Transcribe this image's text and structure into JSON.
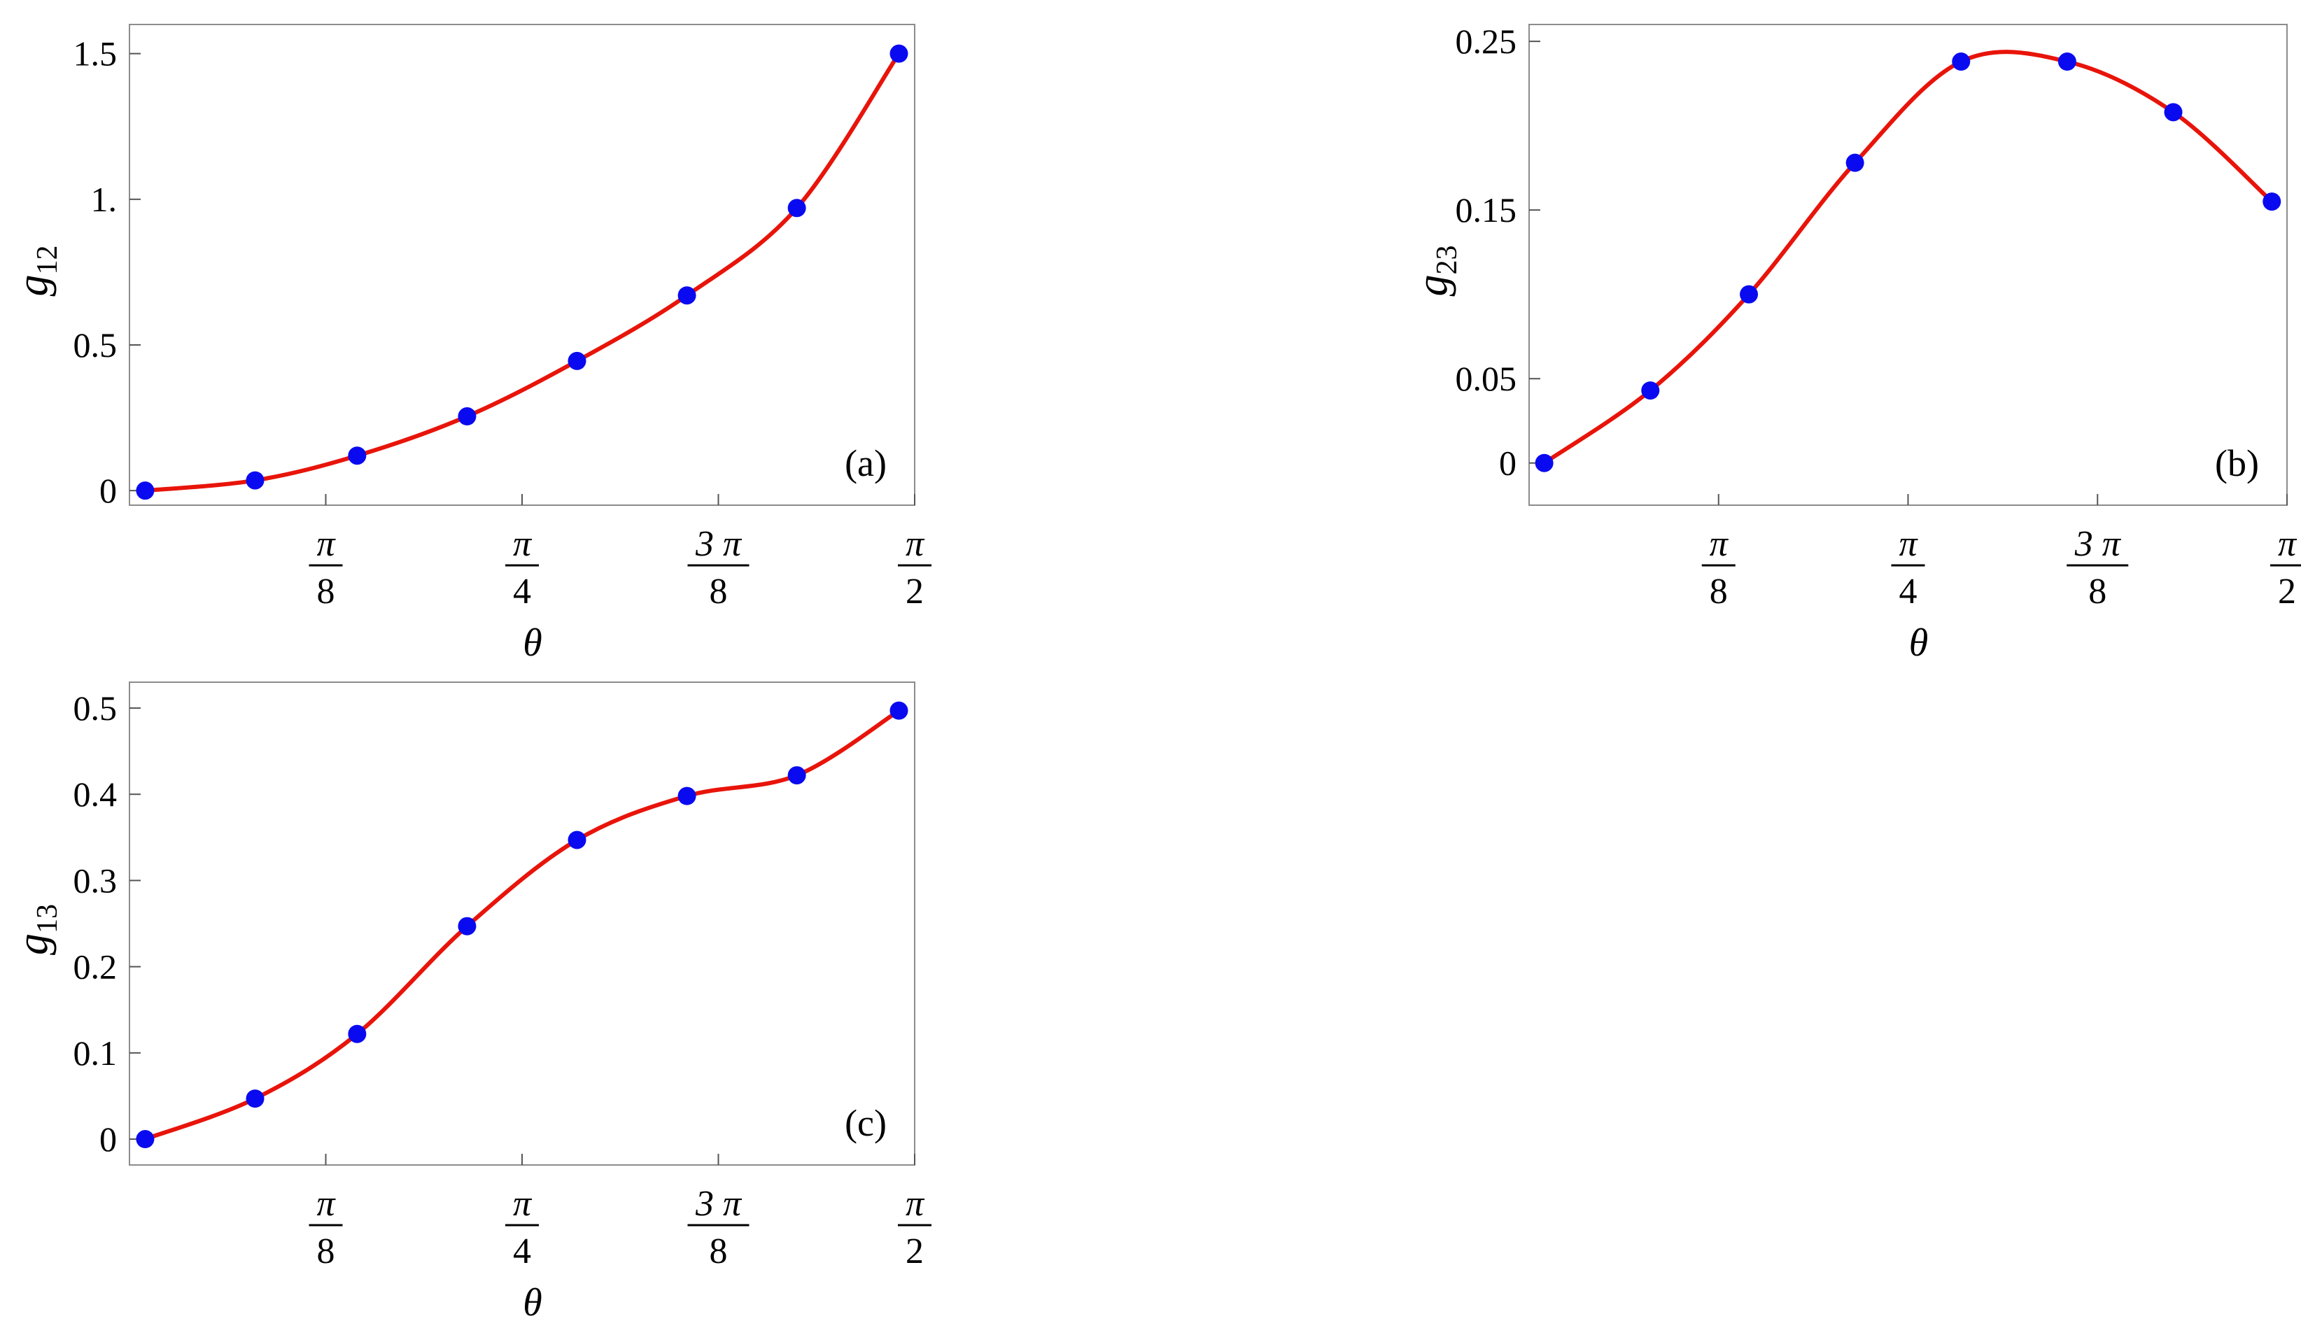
{
  "chart_data": [
    {
      "id": "a",
      "type": "scatter",
      "panel_label": "(a)",
      "xlabel": "θ",
      "ylabel": "g",
      "ylabel_sub": "12",
      "xlim": [
        0,
        1.5708
      ],
      "ylim": [
        -0.05,
        1.6
      ],
      "yticks": [
        {
          "value": 0,
          "label": "0"
        },
        {
          "value": 0.5,
          "label": "0.5"
        },
        {
          "value": 1,
          "label": "1."
        },
        {
          "value": 1.5,
          "label": "1.5"
        }
      ],
      "xticks": [
        {
          "value": 0.3927,
          "num": "π",
          "den": "8"
        },
        {
          "value": 0.7854,
          "num": "π",
          "den": "4"
        },
        {
          "value": 1.1781,
          "num": "3 π",
          "den": "8"
        },
        {
          "value": 1.5708,
          "num": "π",
          "den": "2"
        }
      ],
      "series": [
        {
          "marker_color": "#0a0af0",
          "line_color": "#e8140a",
          "x": [
            0.0314,
            0.2513,
            0.4555,
            0.6754,
            0.8953,
            1.1152,
            1.3351,
            1.5393
          ],
          "y": [
            0.0,
            0.035,
            0.12,
            0.255,
            0.445,
            0.67,
            0.97,
            1.5
          ]
        }
      ]
    },
    {
      "id": "b",
      "type": "scatter",
      "panel_label": "(b)",
      "xlabel": "θ",
      "ylabel": "g",
      "ylabel_sub": "23",
      "xlim": [
        0,
        1.5708
      ],
      "ylim": [
        -0.025,
        0.26
      ],
      "yticks": [
        {
          "value": 0,
          "label": "0"
        },
        {
          "value": 0.05,
          "label": "0.05"
        },
        {
          "value": 0.15,
          "label": "0.15"
        },
        {
          "value": 0.25,
          "label": "0.25"
        }
      ],
      "xticks": [
        {
          "value": 0.3927,
          "num": "π",
          "den": "8"
        },
        {
          "value": 0.7854,
          "num": "π",
          "den": "4"
        },
        {
          "value": 1.1781,
          "num": "3 π",
          "den": "8"
        },
        {
          "value": 1.5708,
          "num": "π",
          "den": "2"
        }
      ],
      "series": [
        {
          "marker_color": "#0a0af0",
          "line_color": "#e8140a",
          "x": [
            0.0314,
            0.2513,
            0.4555,
            0.6754,
            0.8953,
            1.1152,
            1.3351,
            1.5393
          ],
          "y": [
            0.0,
            0.043,
            0.1,
            0.178,
            0.238,
            0.238,
            0.208,
            0.155
          ]
        }
      ]
    },
    {
      "id": "c",
      "type": "scatter",
      "panel_label": "(c)",
      "xlabel": "θ",
      "ylabel": "g",
      "ylabel_sub": "13",
      "xlim": [
        0,
        1.5708
      ],
      "ylim": [
        -0.03,
        0.53
      ],
      "yticks": [
        {
          "value": 0,
          "label": "0"
        },
        {
          "value": 0.1,
          "label": "0.1"
        },
        {
          "value": 0.2,
          "label": "0.2"
        },
        {
          "value": 0.3,
          "label": "0.3"
        },
        {
          "value": 0.4,
          "label": "0.4"
        },
        {
          "value": 0.5,
          "label": "0.5"
        }
      ],
      "xticks": [
        {
          "value": 0.3927,
          "num": "π",
          "den": "8"
        },
        {
          "value": 0.7854,
          "num": "π",
          "den": "4"
        },
        {
          "value": 1.1781,
          "num": "3 π",
          "den": "8"
        },
        {
          "value": 1.5708,
          "num": "π",
          "den": "2"
        }
      ],
      "series": [
        {
          "marker_color": "#0a0af0",
          "line_color": "#e8140a",
          "x": [
            0.0314,
            0.2513,
            0.4555,
            0.6754,
            0.8953,
            1.1152,
            1.3351,
            1.5393
          ],
          "y": [
            0.0,
            0.047,
            0.122,
            0.247,
            0.347,
            0.398,
            0.422,
            0.497
          ]
        }
      ]
    }
  ]
}
